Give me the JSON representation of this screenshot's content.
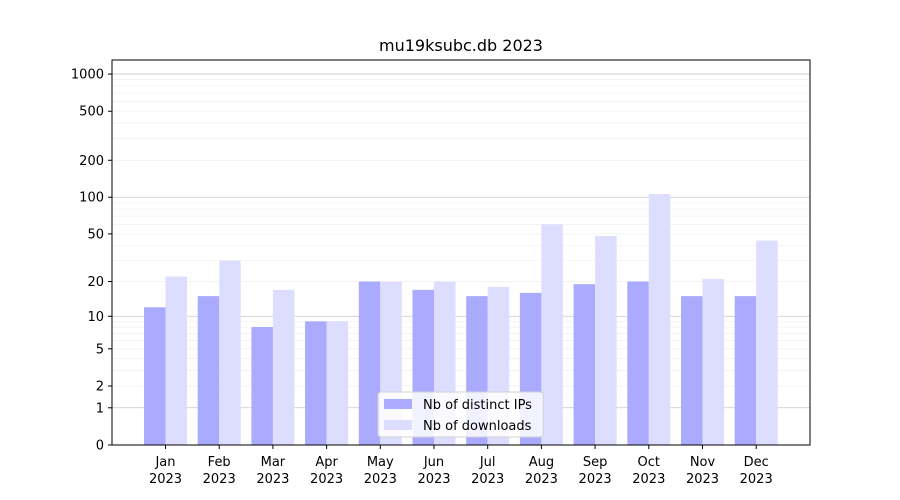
{
  "chart_data": {
    "type": "bar",
    "title": "mu19ksubc.db 2023",
    "xlabel": "",
    "ylabel": "",
    "yscale": "symlog",
    "categories": [
      [
        "Jan",
        "2023"
      ],
      [
        "Feb",
        "2023"
      ],
      [
        "Mar",
        "2023"
      ],
      [
        "Apr",
        "2023"
      ],
      [
        "May",
        "2023"
      ],
      [
        "Jun",
        "2023"
      ],
      [
        "Jul",
        "2023"
      ],
      [
        "Aug",
        "2023"
      ],
      [
        "Sep",
        "2023"
      ],
      [
        "Oct",
        "2023"
      ],
      [
        "Nov",
        "2023"
      ],
      [
        "Dec",
        "2023"
      ]
    ],
    "series": [
      {
        "name": "Nb of distinct IPs",
        "color": "#aaaaff",
        "values": [
          12,
          15,
          8,
          9,
          20,
          17,
          15,
          16,
          19,
          20,
          15,
          15
        ]
      },
      {
        "name": "Nb of downloads",
        "color": "#ddddff",
        "values": [
          22,
          30,
          17,
          9,
          20,
          20,
          18,
          60,
          48,
          106,
          21,
          44
        ]
      }
    ],
    "yticks": [
      0,
      1,
      2,
      5,
      10,
      20,
      50,
      100,
      200,
      500,
      1000
    ],
    "ylim": [
      0,
      1300
    ],
    "grid": true,
    "legend_position": "bottom-center"
  }
}
